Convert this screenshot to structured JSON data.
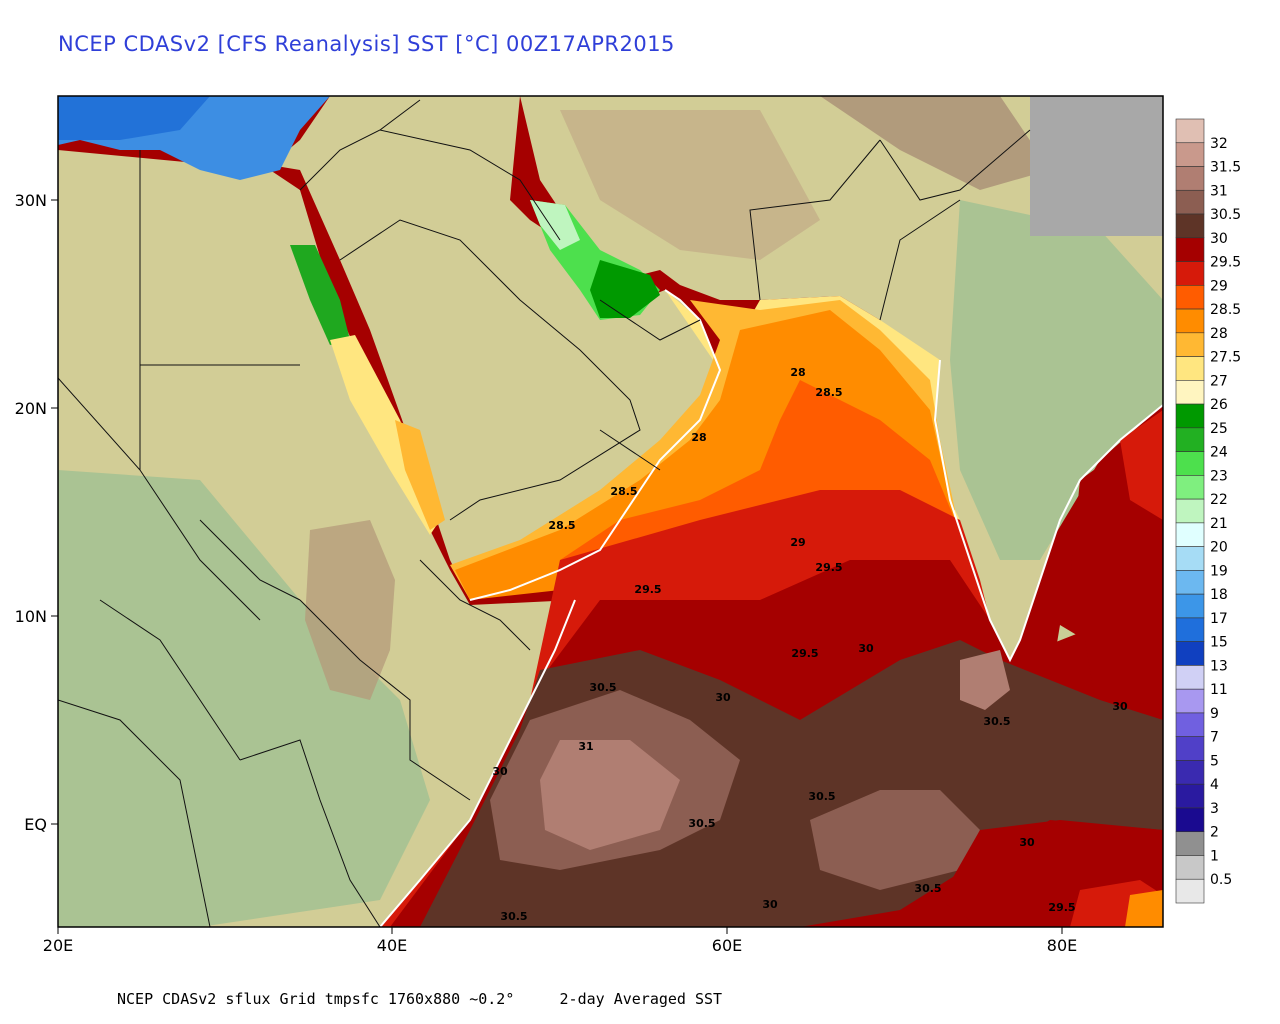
{
  "header": {
    "title": "NCEP CDASv2 [CFS Reanalysis] SST [°C] 00Z17APR2015"
  },
  "footer": {
    "left": "NCEP CDASv2 sflux Grid tmpsfc 1760x880 ~0.2°",
    "right": "2-day Averaged SST"
  },
  "map": {
    "x_ticks": [
      "20E",
      "40E",
      "60E",
      "80E"
    ],
    "y_ticks": [
      "30N",
      "20N",
      "10N",
      "EQ"
    ],
    "contour_labels": [
      {
        "text": "28"
      },
      {
        "text": "28.5"
      },
      {
        "text": "28"
      },
      {
        "text": "28.5"
      },
      {
        "text": "28.5"
      },
      {
        "text": "29"
      },
      {
        "text": "29.5"
      },
      {
        "text": "29.5"
      },
      {
        "text": "29.5"
      },
      {
        "text": "30"
      },
      {
        "text": "30.5"
      },
      {
        "text": "30"
      },
      {
        "text": "31"
      },
      {
        "text": "30"
      },
      {
        "text": "30.5"
      },
      {
        "text": "30.5"
      },
      {
        "text": "30.5"
      },
      {
        "text": "30"
      },
      {
        "text": "30.5"
      },
      {
        "text": "30"
      },
      {
        "text": "30.5"
      },
      {
        "text": "30"
      },
      {
        "text": "29.5"
      }
    ]
  },
  "colorbar": {
    "levels": [
      "32",
      "31.5",
      "31",
      "30.5",
      "30",
      "29.5",
      "29",
      "28.5",
      "28",
      "27.5",
      "27",
      "26",
      "25",
      "24",
      "23",
      "22",
      "21",
      "20",
      "19",
      "18",
      "17",
      "15",
      "13",
      "11",
      "9",
      "7",
      "5",
      "4",
      "3",
      "2",
      "1",
      "0.5"
    ],
    "colors": [
      "#e0bfb3",
      "#c9998c",
      "#b07e72",
      "#8c5e52",
      "#5e3427",
      "#a50000",
      "#d61a0a",
      "#ff5c00",
      "#ff8c00",
      "#ffb833",
      "#ffe680",
      "#fff5c0",
      "#009900",
      "#22b022",
      "#4de04d",
      "#7fef7f",
      "#bff5bf",
      "#e0ffff",
      "#a6dcf5",
      "#6cb8f0",
      "#3c96e8",
      "#1f6fdc",
      "#1040c0",
      "#d0d0f5",
      "#a898f0",
      "#7060e0",
      "#5040c8",
      "#3a2ab0",
      "#2a1aa0",
      "#1a0a90",
      "#909090",
      "#c8c8c8",
      "#e8e8e8"
    ]
  },
  "palette": {
    "land_base": "#d2cd96",
    "land_light": "#e6dfaf",
    "land_green": "#aac393",
    "mountain": "#b4997a",
    "water_med": "#3d8ee3"
  }
}
